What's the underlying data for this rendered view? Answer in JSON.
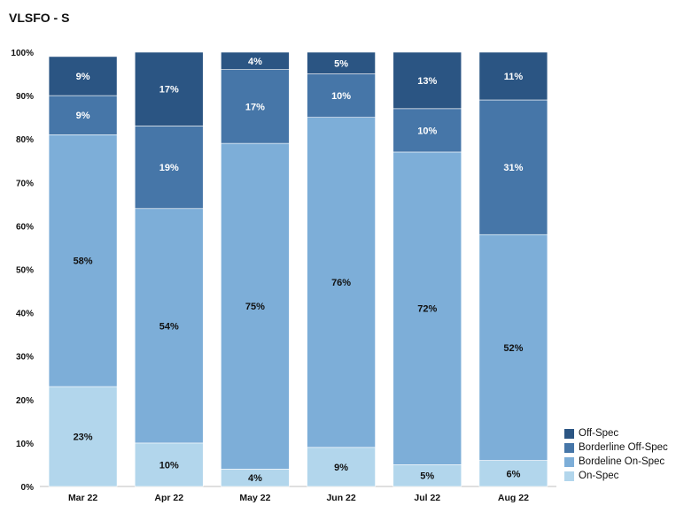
{
  "chart_data": {
    "type": "bar",
    "stacked": true,
    "title": "VLSFO - S",
    "categories": [
      "Mar 22",
      "Apr 22",
      "May 22",
      "Jun 22",
      "Jul 22",
      "Aug 22"
    ],
    "series": [
      {
        "name": "On-Spec",
        "color": "#b2d6ec",
        "values": [
          23,
          10,
          4,
          9,
          5,
          6
        ],
        "labels": [
          "23%",
          "10%",
          "4%",
          "9%",
          "5%",
          "6%"
        ]
      },
      {
        "name": "Bordeline On-Spec",
        "color": "#7daed8",
        "values": [
          58,
          54,
          75,
          76,
          72,
          52
        ],
        "labels": [
          "58%",
          "54%",
          "75%",
          "76%",
          "72%",
          "52%"
        ]
      },
      {
        "name": "Borderline Off-Spec",
        "color": "#4676a8",
        "values": [
          9,
          19,
          17,
          10,
          10,
          31
        ],
        "labels": [
          "9%",
          "19%",
          "17%",
          "10%",
          "10%",
          "31%"
        ]
      },
      {
        "name": "Off-Spec",
        "color": "#2b5583",
        "values": [
          9,
          17,
          4,
          5,
          13,
          11
        ],
        "labels": [
          "9%",
          "17%",
          "4%",
          "5%",
          "13%",
          "11%"
        ]
      }
    ],
    "y_ticks": [
      "0%",
      "10%",
      "20%",
      "30%",
      "40%",
      "50%",
      "60%",
      "70%",
      "80%",
      "90%",
      "100%"
    ],
    "ylim": [
      0,
      100
    ],
    "grid": false,
    "legend_position": "bottom-right"
  },
  "legend_order": [
    "Off-Spec",
    "Borderline Off-Spec",
    "Bordeline On-Spec",
    "On-Spec"
  ]
}
